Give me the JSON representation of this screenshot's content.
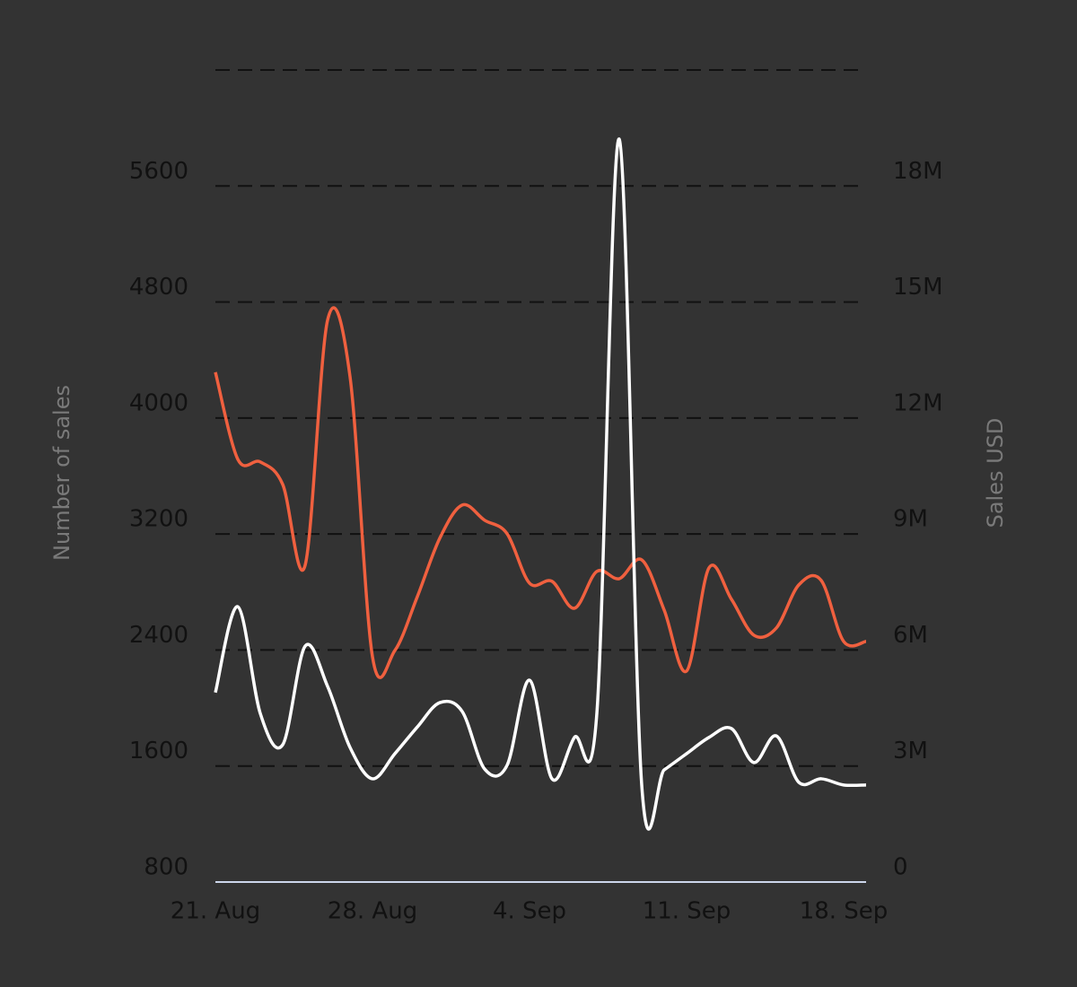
{
  "chart_data": {
    "type": "line",
    "categories": [
      "21. Aug",
      null,
      null,
      null,
      null,
      null,
      null,
      "28. Aug",
      null,
      null,
      null,
      null,
      null,
      null,
      "4. Sep",
      null,
      null,
      null,
      null,
      null,
      null,
      "11. Sep",
      null,
      null,
      null,
      null,
      null,
      null,
      "18. Sep",
      null
    ],
    "y_label": "Number of sales",
    "y2_label": "Sales USD",
    "ylim": [
      800,
      6400
    ],
    "yticks": [
      800,
      1600,
      2400,
      3200,
      4000,
      4800,
      5600
    ],
    "y2lim": [
      0,
      21000000
    ],
    "y2ticks": [
      0,
      {
        "value": 3000000,
        "label": "3M"
      },
      {
        "value": 6000000,
        "label": "6M"
      },
      {
        "value": 9000000,
        "label": "9M"
      },
      {
        "value": 12000000,
        "label": "12M"
      },
      {
        "value": 15000000,
        "label": "15M"
      },
      {
        "value": 18000000,
        "label": "18M"
      }
    ],
    "grid": true,
    "series": [
      {
        "name": "Number of sales",
        "color": "#f0603f",
        "axis": "y",
        "values": [
          4316,
          3715,
          3697,
          3542,
          2985,
          4675,
          4285,
          2354,
          2397,
          2768,
          3171,
          3400,
          3295,
          3202,
          2861,
          2874,
          2688,
          2942,
          2892,
          3022,
          2676,
          2255,
          2967,
          2750,
          2502,
          2552,
          2849,
          2880,
          2459,
          2459
        ]
      },
      {
        "name": "Sales USD",
        "color": "#ffffff",
        "axis": "y2",
        "values": [
          4900000,
          7120000,
          4360000,
          3550000,
          6100000,
          5060000,
          3480000,
          2670000,
          3320000,
          4010000,
          4640000,
          4410000,
          2920000,
          3020000,
          5220000,
          2670000,
          3740000,
          4360000,
          19210000,
          2510000,
          2900000,
          3320000,
          3740000,
          3970000,
          3090000,
          3780000,
          2580000,
          2670000,
          2510000,
          2510000
        ]
      }
    ]
  }
}
